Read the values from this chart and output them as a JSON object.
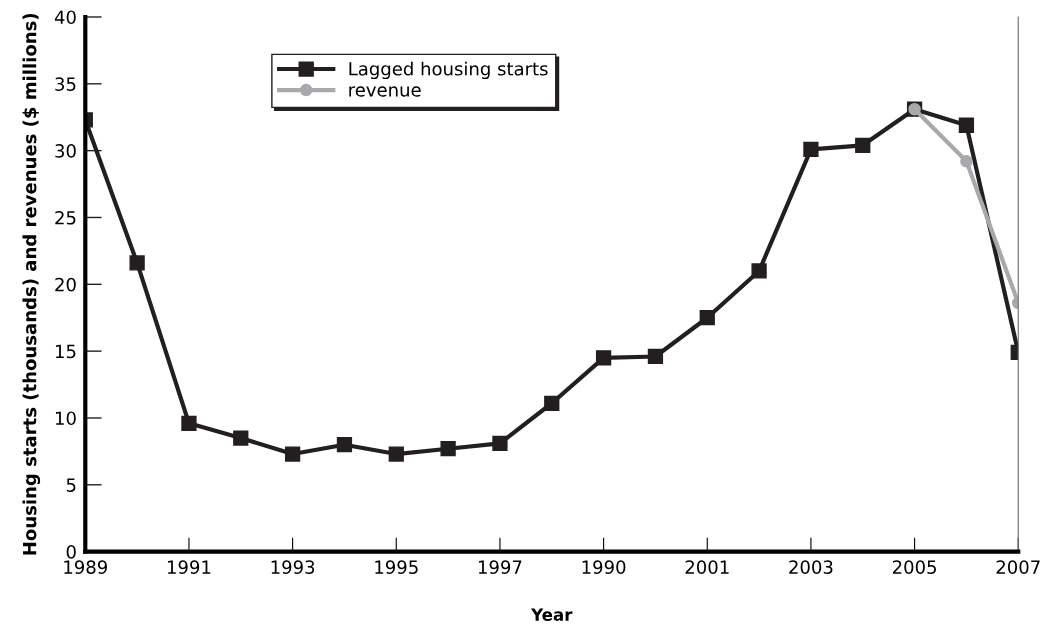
{
  "chart_data": {
    "type": "line",
    "xlabel": "Year",
    "ylabel": "Housing starts (thousands) and revenues ($ millions)",
    "categories": [
      "1989",
      null,
      "1991",
      null,
      "1993",
      null,
      "1995",
      null,
      "1997",
      null,
      "1990",
      null,
      "2001",
      null,
      "2003",
      null,
      "2005",
      null,
      "2007"
    ],
    "series": [
      {
        "name": "Lagged housing starts",
        "color": "#231f20",
        "marker": "square",
        "values": [
          32.3,
          21.6,
          9.6,
          8.5,
          7.3,
          8.0,
          7.3,
          7.7,
          8.1,
          11.1,
          14.5,
          14.6,
          17.5,
          21.0,
          30.1,
          30.4,
          33.1,
          31.9,
          14.9
        ]
      },
      {
        "name": "revenue",
        "color": "#a7a9ac",
        "marker": "circle",
        "values": [
          null,
          null,
          null,
          null,
          null,
          null,
          null,
          null,
          null,
          null,
          null,
          null,
          null,
          null,
          null,
          null,
          33.1,
          29.2,
          18.6
        ]
      }
    ],
    "ylim": [
      0,
      40
    ],
    "yticks": [
      0,
      5,
      10,
      15,
      20,
      25,
      30,
      35,
      40
    ],
    "legend": "top",
    "line_style": "solid",
    "grid": false
  }
}
